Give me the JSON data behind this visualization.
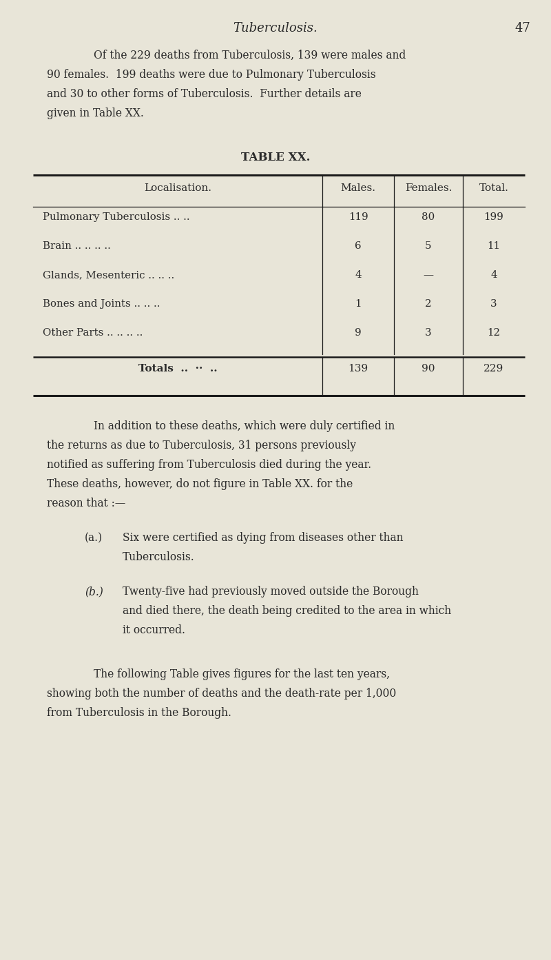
{
  "bg_color": "#e8e5d8",
  "page_title_italic": "Tuberculosis.",
  "page_number": "47",
  "text_color": "#2a2a2a",
  "line_color": "#1a1a1a",
  "header_fontsize": 13,
  "body_fontsize": 11.2,
  "table_header_fontsize": 11.0,
  "table_body_fontsize": 10.8,
  "para1_lines": [
    "Of the 229 deaths from Tuberculosis, 139 were males and",
    "90 females.  199 deaths were due to Pulmonary Tuberculosis",
    "and 30 to other forms of Tuberculosis.  Further details are",
    "given in Table XX."
  ],
  "table_title": "TABLE XX.",
  "col_headers": [
    "Localisation.",
    "Males.",
    "Females.",
    "Total."
  ],
  "table_rows": [
    [
      "Pulmonary Tuberculosis .. ..",
      "119",
      "80",
      "199"
    ],
    [
      "Brain .. .. .. ..",
      "6",
      "5",
      "11"
    ],
    [
      "Glands, Mesenteric .. .. ..",
      "4",
      "—",
      "4"
    ],
    [
      "Bones and Joints .. .. ..",
      "1",
      "2",
      "3"
    ],
    [
      "Other Parts .. .. .. ..",
      "9",
      "3",
      "12"
    ]
  ],
  "totals_row": [
    "Totals .. ·· ..",
    "139",
    "90",
    "229"
  ],
  "para2_lines": [
    "In addition to these deaths, which were duly certified in",
    "the returns as due to Tuberculosis, 31 persons previously",
    "notified as suffering from Tuberculosis died during the year.",
    "These deaths, however, do not figure in Table XX. for the",
    "reason that :—"
  ],
  "para3a_label": "(a.)",
  "para3a_lines": [
    "Six were certified as dying from diseases other than",
    "Tuberculosis."
  ],
  "para3b_label": "(b.)",
  "para3b_lines": [
    "Twenty-five had previously moved outside the Borough",
    "and died there, the death being credited to the area in which",
    "it occurred."
  ],
  "para4_lines": [
    "The following Table gives figures for the last ten years,",
    "showing both the number of deaths and the death-rate per 1,000",
    "from Tuberculosis in the Borough."
  ]
}
